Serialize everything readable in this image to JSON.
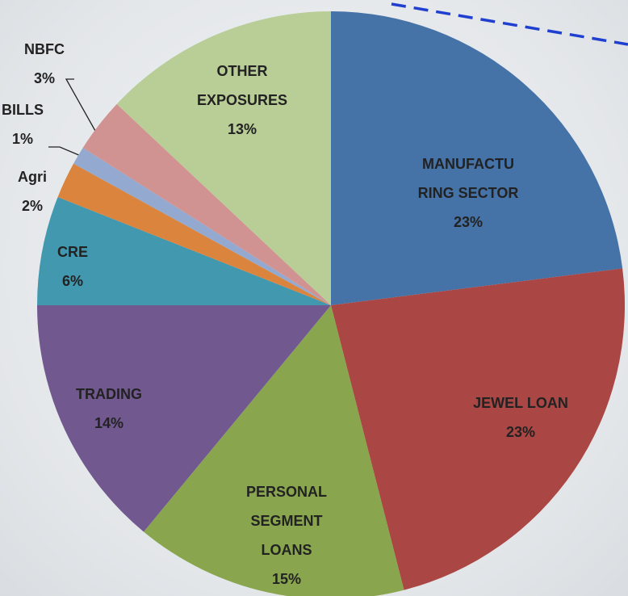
{
  "chart_data": {
    "type": "pie",
    "categories": [
      [
        "MANUFACTU",
        "RING SECTOR"
      ],
      [
        "JEWEL LOAN"
      ],
      [
        "PERSONAL",
        "SEGMENT",
        "LOANS"
      ],
      [
        "TRADING"
      ],
      [
        "CRE"
      ],
      [
        "Agri"
      ],
      [
        "BILLS"
      ],
      [
        "NBFC"
      ],
      [
        "OTHER",
        "EXPOSURES"
      ]
    ],
    "values": [
      23,
      23,
      15,
      14,
      6,
      2,
      1,
      3,
      13
    ],
    "value_labels": [
      "23%",
      "23%",
      "15%",
      "14%",
      "6%",
      "2%",
      "1%",
      "3%",
      "13%"
    ],
    "colors": [
      "#4572a7",
      "#aa4643",
      "#89a54e",
      "#71588f",
      "#4198af",
      "#db843d",
      "#93a9cf",
      "#d19392",
      "#b9cd96"
    ]
  }
}
